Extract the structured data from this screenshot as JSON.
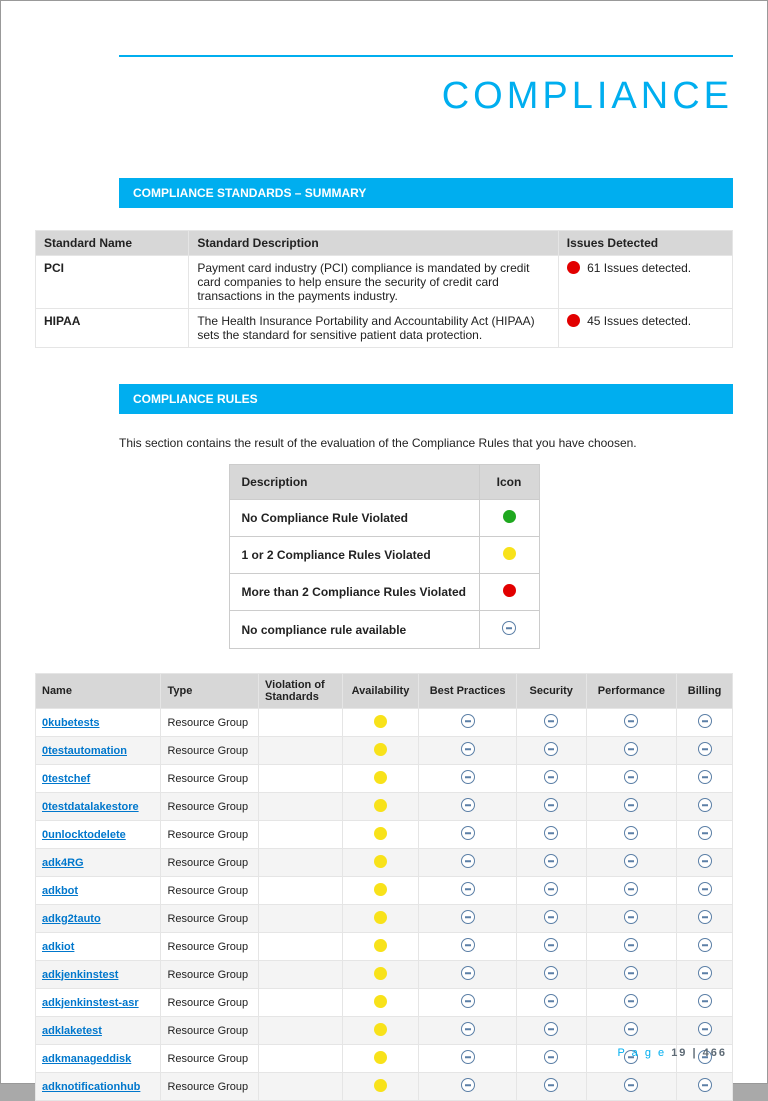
{
  "colors": {
    "accent": "#00aeef",
    "header_bg": "#d7d7d7",
    "row_alt": "#f4f4f4",
    "border": "#e5e5e5",
    "link": "#0077cc",
    "green": "#1fa81f",
    "yellow": "#f8e21a",
    "red": "#e20000",
    "minus_border": "#5b7fa6"
  },
  "page_title": "COMPLIANCE",
  "section_standards_title": "COMPLIANCE STANDARDS – SUMMARY",
  "section_rules_title": "COMPLIANCE RULES",
  "rules_intro": "This section contains the result of the evaluation of the Compliance Rules that you have choosen.",
  "standards": {
    "columns": [
      "Standard Name",
      "Standard Description",
      "Issues Detected"
    ],
    "col_widths": [
      "22%",
      "53%",
      "25%"
    ],
    "rows": [
      {
        "name": "PCI",
        "desc": "Payment card industry (PCI) compliance is mandated by credit card companies to help ensure the security of credit card transactions in the payments industry.",
        "issues_count": 61,
        "issues_text": "61 Issues detected.",
        "dot": "red"
      },
      {
        "name": "HIPAA",
        "desc": "The Health Insurance Portability and Accountability Act (HIPAA) sets the standard for sensitive patient data protection.",
        "issues_count": 45,
        "issues_text": "45 Issues detected.",
        "dot": "red"
      }
    ]
  },
  "legend": {
    "columns": [
      "Description",
      "Icon"
    ],
    "rows": [
      {
        "desc": "No Compliance Rule Violated",
        "icon": "green"
      },
      {
        "desc": "1 or 2 Compliance Rules Violated",
        "icon": "yellow"
      },
      {
        "desc": "More than 2 Compliance Rules Violated",
        "icon": "red"
      },
      {
        "desc": "No compliance rule available",
        "icon": "minus"
      }
    ]
  },
  "resources": {
    "columns": [
      "Name",
      "Type",
      "Violation of Standards",
      "Availability",
      "Best Practices",
      "Security",
      "Performance",
      "Billing"
    ],
    "col_widths": [
      "18%",
      "14%",
      "12%",
      "11%",
      "14%",
      "10%",
      "13%",
      "8%"
    ],
    "rows": [
      {
        "name": "0kubetests",
        "type": "Resource Group",
        "violation": "",
        "availability": "yellow",
        "best": "minus",
        "security": "minus",
        "performance": "minus",
        "billing": "minus"
      },
      {
        "name": "0testautomation",
        "type": "Resource Group",
        "violation": "",
        "availability": "yellow",
        "best": "minus",
        "security": "minus",
        "performance": "minus",
        "billing": "minus"
      },
      {
        "name": "0testchef",
        "type": "Resource Group",
        "violation": "",
        "availability": "yellow",
        "best": "minus",
        "security": "minus",
        "performance": "minus",
        "billing": "minus"
      },
      {
        "name": "0testdatalakestore",
        "type": "Resource Group",
        "violation": "",
        "availability": "yellow",
        "best": "minus",
        "security": "minus",
        "performance": "minus",
        "billing": "minus"
      },
      {
        "name": "0unlocktodelete",
        "type": "Resource Group",
        "violation": "",
        "availability": "yellow",
        "best": "minus",
        "security": "minus",
        "performance": "minus",
        "billing": "minus"
      },
      {
        "name": "adk4RG",
        "type": "Resource Group",
        "violation": "",
        "availability": "yellow",
        "best": "minus",
        "security": "minus",
        "performance": "minus",
        "billing": "minus"
      },
      {
        "name": "adkbot",
        "type": "Resource Group",
        "violation": "",
        "availability": "yellow",
        "best": "minus",
        "security": "minus",
        "performance": "minus",
        "billing": "minus"
      },
      {
        "name": "adkg2tauto",
        "type": "Resource Group",
        "violation": "",
        "availability": "yellow",
        "best": "minus",
        "security": "minus",
        "performance": "minus",
        "billing": "minus"
      },
      {
        "name": "adkiot",
        "type": "Resource Group",
        "violation": "",
        "availability": "yellow",
        "best": "minus",
        "security": "minus",
        "performance": "minus",
        "billing": "minus"
      },
      {
        "name": "adkjenkinstest",
        "type": "Resource Group",
        "violation": "",
        "availability": "yellow",
        "best": "minus",
        "security": "minus",
        "performance": "minus",
        "billing": "minus"
      },
      {
        "name": "adkjenkinstest-asr",
        "type": "Resource Group",
        "violation": "",
        "availability": "yellow",
        "best": "minus",
        "security": "minus",
        "performance": "minus",
        "billing": "minus"
      },
      {
        "name": "adklaketest",
        "type": "Resource Group",
        "violation": "",
        "availability": "yellow",
        "best": "minus",
        "security": "minus",
        "performance": "minus",
        "billing": "minus"
      },
      {
        "name": "adkmanageddisk",
        "type": "Resource Group",
        "violation": "",
        "availability": "yellow",
        "best": "minus",
        "security": "minus",
        "performance": "minus",
        "billing": "minus"
      },
      {
        "name": "adknotificationhub",
        "type": "Resource Group",
        "violation": "",
        "availability": "yellow",
        "best": "minus",
        "security": "minus",
        "performance": "minus",
        "billing": "minus"
      }
    ]
  },
  "footer": {
    "label": "P a g e",
    "current": "19",
    "sep": " | ",
    "total": "466"
  }
}
